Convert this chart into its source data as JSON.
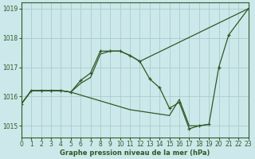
{
  "title": "Graphe pression niveau de la mer (hPa)",
  "bg_color": "#cce8ea",
  "grid_color": "#aacccc",
  "line_color": "#2d5a27",
  "xlim": [
    0,
    23
  ],
  "ylim": [
    1014.6,
    1019.2
  ],
  "yticks": [
    1015,
    1016,
    1017,
    1018,
    1019
  ],
  "xticks": [
    0,
    1,
    2,
    3,
    4,
    5,
    6,
    7,
    8,
    9,
    10,
    11,
    12,
    13,
    14,
    15,
    16,
    17,
    18,
    19,
    20,
    21,
    22,
    23
  ],
  "line1_x": [
    0,
    1,
    2,
    3,
    4,
    5,
    6,
    7,
    8,
    9,
    10,
    11,
    12,
    13,
    14,
    15,
    16,
    17,
    18,
    19,
    20,
    21,
    23
  ],
  "line1_y": [
    1015.75,
    1016.2,
    1016.2,
    1016.2,
    1016.2,
    1016.15,
    1016.55,
    1016.8,
    1017.55,
    1017.55,
    1017.55,
    1017.4,
    1017.2,
    1016.6,
    1016.3,
    1015.6,
    1015.8,
    1014.9,
    1015.0,
    1015.05,
    1017.0,
    1018.1,
    1019.0
  ],
  "line2_x": [
    0,
    1,
    2,
    3,
    4,
    5,
    6,
    7,
    8,
    9,
    10,
    11,
    12,
    23
  ],
  "line2_y": [
    1015.75,
    1016.2,
    1016.2,
    1016.2,
    1016.2,
    1016.15,
    1016.45,
    1016.65,
    1017.45,
    1017.55,
    1017.55,
    1017.4,
    1017.2,
    1019.0
  ],
  "line3_x": [
    0,
    1,
    2,
    3,
    4,
    5,
    6,
    7,
    8,
    9,
    10,
    11,
    12,
    13,
    14,
    15,
    16,
    17,
    18,
    19
  ],
  "line3_y": [
    1015.75,
    1016.2,
    1016.2,
    1016.2,
    1016.2,
    1016.15,
    1016.05,
    1015.95,
    1015.85,
    1015.75,
    1015.65,
    1015.55,
    1015.5,
    1015.45,
    1015.4,
    1015.35,
    1015.9,
    1015.0,
    1015.0,
    1015.05
  ]
}
